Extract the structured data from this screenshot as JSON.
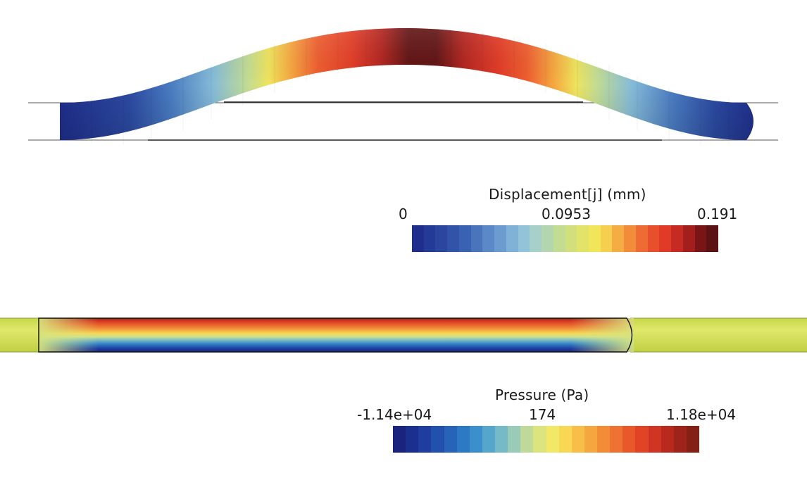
{
  "displacement_legend": {
    "title": "Displacement[j] (mm)",
    "ticks": [
      "0",
      "0.0953",
      "0.191"
    ],
    "colors": [
      "#1f2e8c",
      "#233a96",
      "#2a469f",
      "#3153a8",
      "#3a62b2",
      "#4a74bc",
      "#5b88c6",
      "#6c9ccf",
      "#80b1d6",
      "#93c3d8",
      "#a6d0c9",
      "#b4d6ae",
      "#c3dc93",
      "#d1e07c",
      "#e2e46a",
      "#f1e65a",
      "#f7cf4e",
      "#f5ad43",
      "#f28b3a",
      "#ee6b33",
      "#e8502d",
      "#df3b27",
      "#c72a22",
      "#a31e1d",
      "#7a1517",
      "#5a1212"
    ]
  },
  "pressure_legend": {
    "title": "Pressure (Pa)",
    "ticks": [
      "-1.14e+04",
      "174",
      "1.18e+04"
    ],
    "colors": [
      "#1a237e",
      "#1b2f8f",
      "#1e3d9f",
      "#2150ad",
      "#2763b9",
      "#2e79c3",
      "#3b8fca",
      "#55a5cc",
      "#76bac8",
      "#9acbb8",
      "#bfd99b",
      "#dce47e",
      "#f1e868",
      "#f7d754",
      "#f7bf47",
      "#f5a63e",
      "#f28c37",
      "#ee7231",
      "#e9582b",
      "#e04326",
      "#d03422",
      "#b82a1e",
      "#9e2419",
      "#852015"
    ]
  }
}
